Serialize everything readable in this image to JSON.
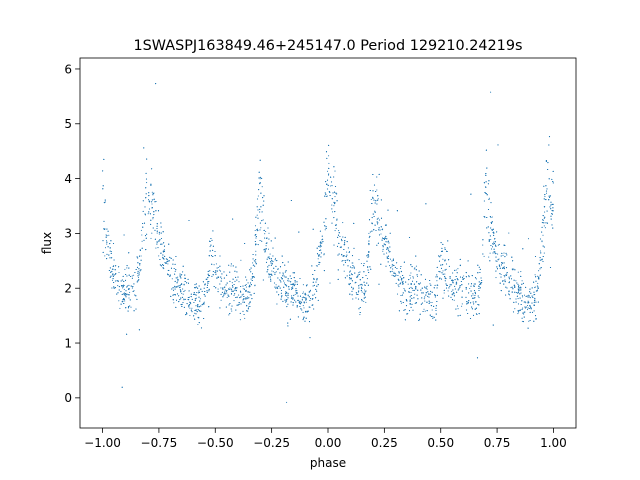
{
  "chart_data": {
    "type": "scatter",
    "title": "1SWASPJ163849.46+245147.0 Period 129210.24219s",
    "xlabel": "phase",
    "ylabel": "flux",
    "xlim": [
      -1.1,
      1.1
    ],
    "ylim": [
      -0.55,
      6.2
    ],
    "x_ticks": [
      -1.0,
      -0.75,
      -0.5,
      -0.25,
      0.0,
      0.25,
      0.5,
      0.75,
      1.0
    ],
    "x_tick_labels": [
      "−1.00",
      "−0.75",
      "−0.50",
      "−0.25",
      "0.00",
      "0.25",
      "0.50",
      "0.75",
      "1.00"
    ],
    "y_ticks": [
      0,
      1,
      2,
      3,
      4,
      5,
      6
    ],
    "y_tick_labels": [
      "0",
      "1",
      "2",
      "3",
      "4",
      "5",
      "6"
    ],
    "grid": false,
    "marker_color": "#1f77b4",
    "light_curve_shape": {
      "x": [
        -1.0,
        -0.98,
        -0.96,
        -0.94,
        -0.9,
        -0.85,
        -0.83,
        -0.8,
        -0.78,
        -0.75,
        -0.7,
        -0.65,
        -0.6,
        -0.55,
        -0.52,
        -0.5,
        -0.45,
        -0.4,
        -0.35,
        -0.32,
        -0.3,
        -0.28,
        -0.25,
        -0.2,
        -0.15,
        -0.1,
        -0.05,
        -0.02,
        0.0,
        0.02,
        0.05,
        0.1,
        0.15,
        0.17,
        0.2,
        0.22,
        0.25,
        0.3,
        0.35,
        0.4,
        0.45,
        0.48,
        0.5,
        0.55,
        0.6,
        0.65,
        0.68,
        0.7,
        0.72,
        0.75,
        0.8,
        0.85,
        0.9,
        0.93,
        0.96,
        0.98,
        1.0
      ],
      "y": [
        3.5,
        2.9,
        2.4,
        2.1,
        2.0,
        2.0,
        2.6,
        3.8,
        3.4,
        2.9,
        2.3,
        2.0,
        1.8,
        1.7,
        2.6,
        2.3,
        2.0,
        1.9,
        1.8,
        2.8,
        3.9,
        2.9,
        2.4,
        2.1,
        1.9,
        1.7,
        2.2,
        3.0,
        4.0,
        3.6,
        2.9,
        2.3,
        2.0,
        2.2,
        3.6,
        3.3,
        2.8,
        2.3,
        2.0,
        1.9,
        1.8,
        1.8,
        2.5,
        2.1,
        2.0,
        1.8,
        2.1,
        3.9,
        3.0,
        2.6,
        2.2,
        1.9,
        1.7,
        1.9,
        3.5,
        4.0,
        3.3
      ]
    }
  }
}
